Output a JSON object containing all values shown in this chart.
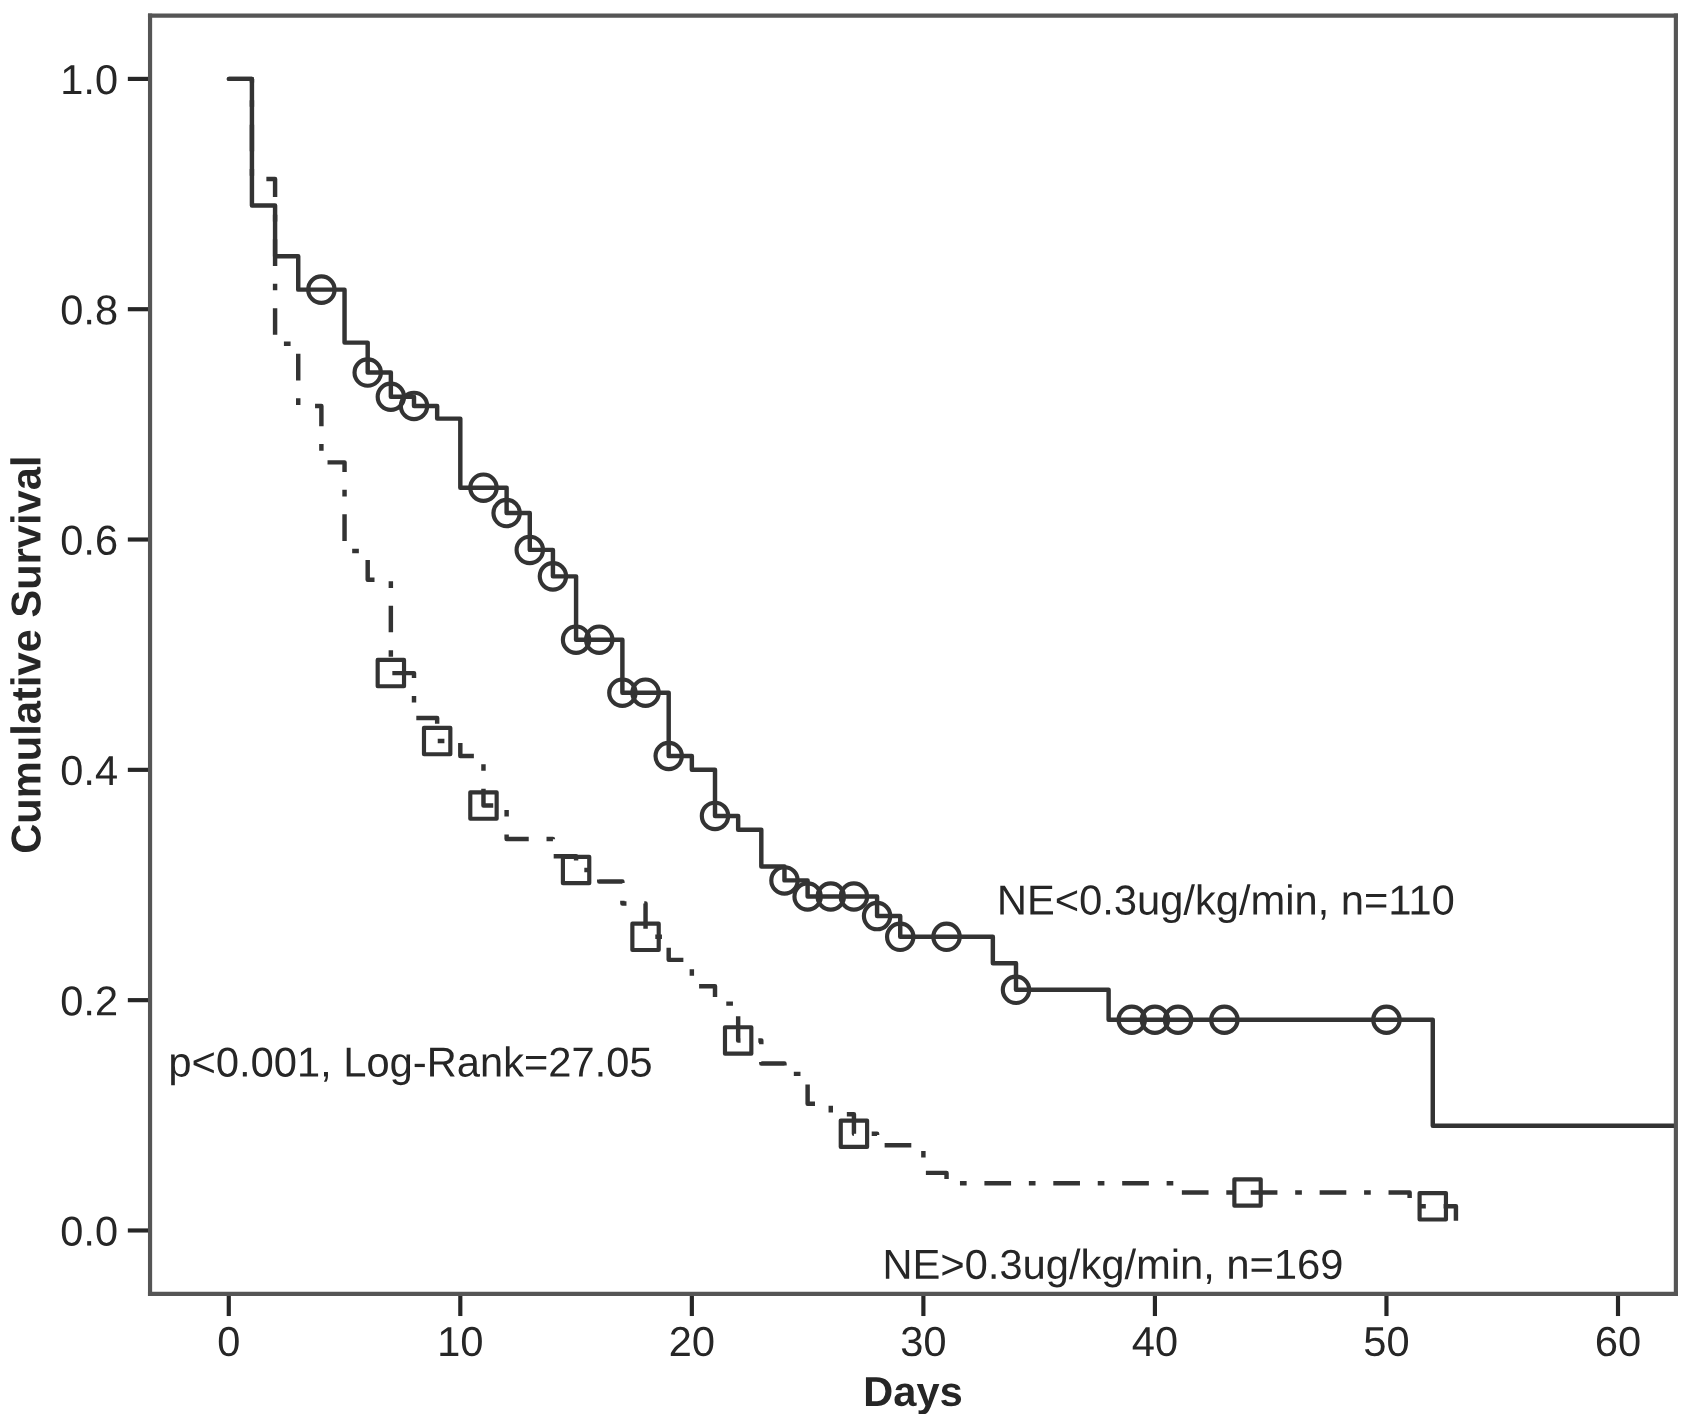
{
  "chart_data": {
    "type": "step",
    "xlabel": "Days",
    "ylabel": "Cumulative Survival",
    "xlim": [
      -3.4,
      62.5
    ],
    "ylim": [
      -0.055,
      1.055
    ],
    "xticks": [
      0,
      10,
      20,
      30,
      40,
      50,
      60
    ],
    "yticks": [
      {
        "value": 0,
        "label": "0.0"
      },
      {
        "value": 0.2,
        "label": "0.2"
      },
      {
        "value": 0.4,
        "label": "0.4"
      },
      {
        "value": 0.6,
        "label": "0.6"
      },
      {
        "value": 0.8,
        "label": "0.8"
      },
      {
        "value": 1.0,
        "label": "1.0"
      }
    ],
    "grid": false,
    "legend": false,
    "series": [
      {
        "name": "NE<0.3ug/kg/min, n=110",
        "color": "#333333",
        "line_style": "solid",
        "x": [
          0,
          1,
          2,
          3,
          5,
          6,
          7,
          8,
          9,
          10,
          12,
          13,
          14,
          15,
          17,
          19,
          20,
          21,
          22,
          23,
          24,
          25,
          28,
          29,
          33,
          34,
          38,
          52,
          62.5
        ],
        "values": [
          1.0,
          0.89,
          0.846,
          0.817,
          0.771,
          0.745,
          0.724,
          0.716,
          0.705,
          0.645,
          0.623,
          0.591,
          0.568,
          0.513,
          0.467,
          0.412,
          0.4,
          0.36,
          0.348,
          0.316,
          0.304,
          0.29,
          0.273,
          0.255,
          0.232,
          0.209,
          0.183,
          0.091,
          0.091
        ]
      },
      {
        "name": "NE>0.3ug/kg/min, n=169",
        "color": "#333333",
        "line_style": "dashed",
        "x": [
          0,
          1,
          2,
          3,
          4,
          5,
          6,
          7,
          8,
          9,
          10,
          11,
          12,
          14,
          15,
          16,
          17,
          18,
          19,
          20,
          21,
          22,
          23,
          24,
          25,
          26,
          27,
          28,
          30,
          31,
          41,
          51,
          53
        ],
        "values": [
          1.0,
          0.913,
          0.77,
          0.716,
          0.667,
          0.59,
          0.565,
          0.484,
          0.445,
          0.425,
          0.412,
          0.369,
          0.34,
          0.325,
          0.313,
          0.303,
          0.284,
          0.255,
          0.235,
          0.212,
          0.197,
          0.165,
          0.145,
          0.136,
          0.11,
          0.101,
          0.084,
          0.074,
          0.05,
          0.041,
          0.033,
          0.021,
          0.006
        ]
      },
      {
        "type": "scatter",
        "marker": "circle",
        "color": "#333333",
        "x": [
          4,
          6,
          7,
          8,
          11,
          12,
          13,
          14,
          15,
          16,
          17,
          18,
          19,
          21,
          24,
          25,
          26,
          27,
          28,
          29,
          31,
          34,
          39,
          40,
          41,
          43,
          50
        ],
        "values": [
          0.817,
          0.745,
          0.724,
          0.716,
          0.645,
          0.623,
          0.591,
          0.568,
          0.513,
          0.513,
          0.467,
          0.467,
          0.412,
          0.36,
          0.304,
          0.29,
          0.29,
          0.29,
          0.273,
          0.255,
          0.255,
          0.209,
          0.183,
          0.183,
          0.183,
          0.183,
          0.183
        ]
      },
      {
        "type": "scatter",
        "marker": "square",
        "color": "#333333",
        "x": [
          7,
          9,
          11,
          15,
          18,
          22,
          27,
          44,
          52
        ],
        "values": [
          0.484,
          0.425,
          0.369,
          0.313,
          0.255,
          0.165,
          0.084,
          0.033,
          0.021
        ]
      }
    ],
    "annotations": [
      "p<0.001, Log-Rank=27.05"
    ]
  }
}
